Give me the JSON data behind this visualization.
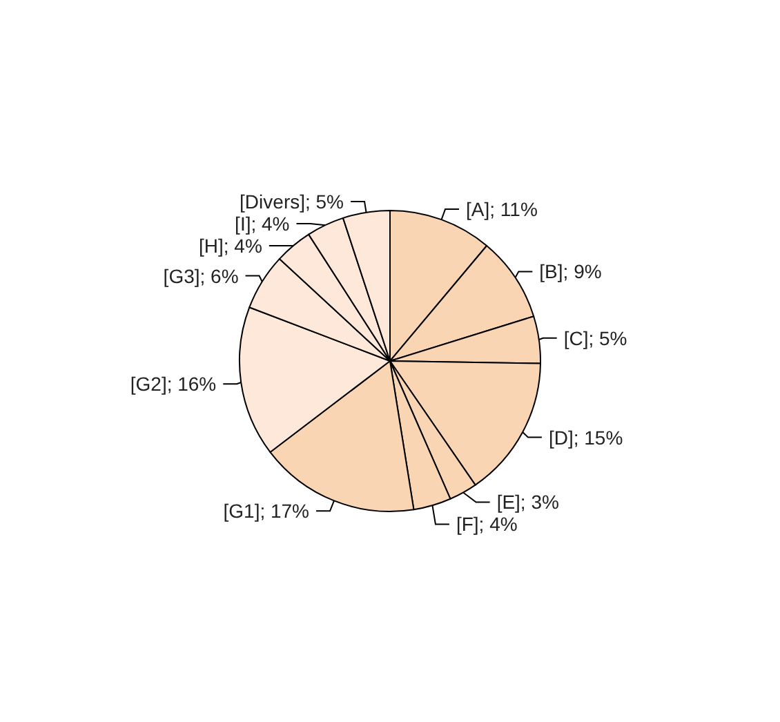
{
  "chart_data": {
    "type": "pie",
    "categories": [
      "[A]; 11%",
      "[B]; 9%",
      "[C]; 5%",
      "[D]; 15%",
      "[E]; 3%",
      "[F]; 4%",
      "[G1]; 17%",
      "[G2]; 16%",
      "[G3]; 6%",
      "[H]; 4%",
      "[I]; 4%",
      "[Divers]; 5%"
    ],
    "values": [
      11,
      9,
      5,
      15,
      3,
      4,
      17,
      16,
      6,
      4,
      4,
      5
    ],
    "colors": [
      "#fad5b4",
      "#fad5b4",
      "#fad5b4",
      "#fad5b4",
      "#fad5b4",
      "#fad5b4",
      "#fad5b4",
      "#fde8da",
      "#fde8da",
      "#fde8da",
      "#fde8da",
      "#fde8da"
    ]
  }
}
